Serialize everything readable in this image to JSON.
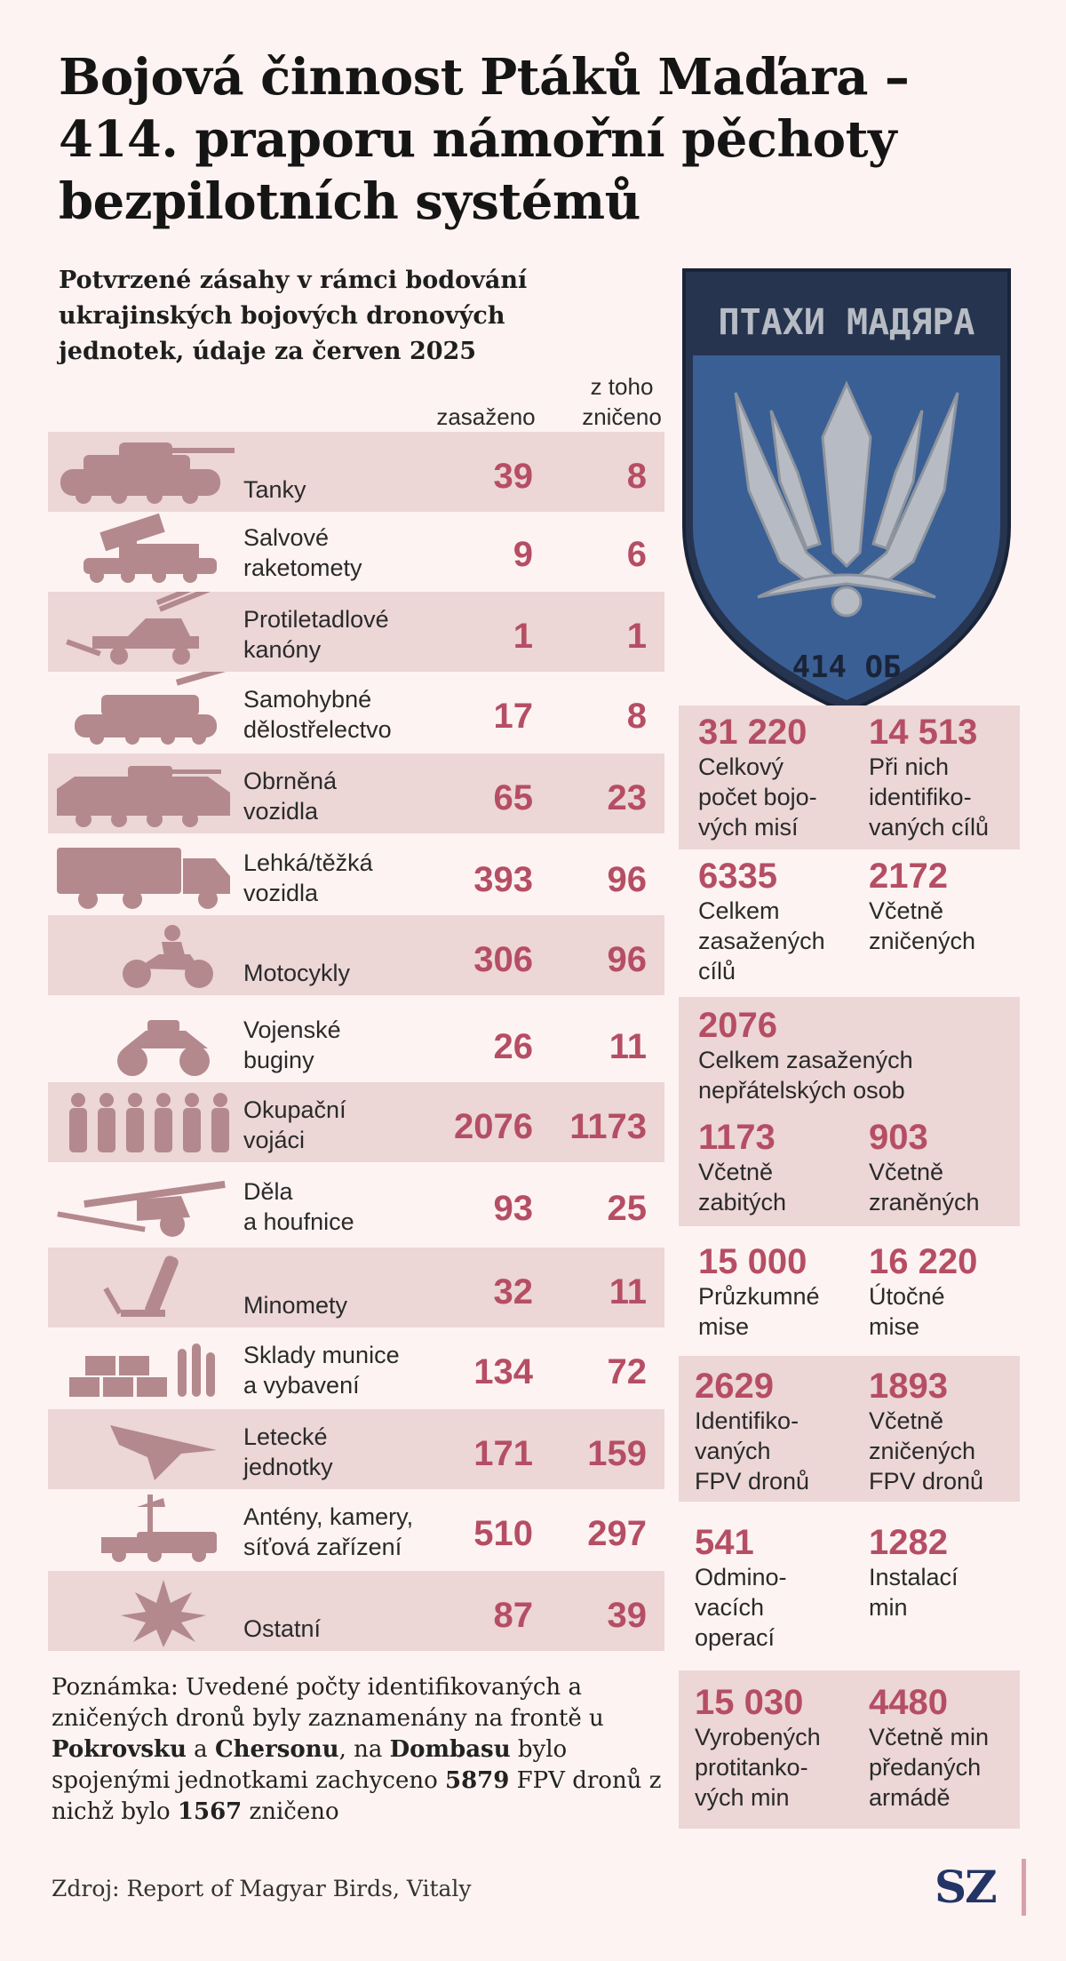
{
  "header": {
    "title": "Bojová činnost Ptáků Maďara – 414. praporu námořní pěchoty bezpilotních systémů",
    "subtitle": "Potvrzené zásahy v rámci bodování ukrajinských bojových dronových jednotek, údaje za červen 2025"
  },
  "columns": {
    "hit": "zasaženo",
    "destroyed": "z toho zničeno"
  },
  "badge": {
    "top_text": "ПТАХИ МАДЯРА",
    "bottom_text": "414 ОБ"
  },
  "colors": {
    "accent": "#b54e64",
    "silhouette": "#b3898d",
    "row_shade": "#ecd6d6",
    "badge_blue": "#3a5f95",
    "badge_dark": "#25344f"
  },
  "chart_data": {
    "type": "table",
    "title": "Bojová činnost Ptáků Maďara – 414. praporu námořní pěchoty bezpilotních systémů",
    "subtitle": "Potvrzené zásahy v rámci bodování ukrajinských bojových dronových jednotek, údaje za červen 2025",
    "columns": [
      "zasaženo",
      "z toho zničeno"
    ],
    "rows": [
      {
        "label": "Tanky",
        "icon": "tank-icon",
        "hit": 39,
        "destroyed": 8
      },
      {
        "label": "Salvové raketomety",
        "icon": "rocket-launcher-icon",
        "hit": 9,
        "destroyed": 6
      },
      {
        "label": "Protiletadlové kanóny",
        "icon": "anti-aircraft-gun-icon",
        "hit": 1,
        "destroyed": 1
      },
      {
        "label": "Samohybné dělostřelectvo",
        "icon": "self-propelled-artillery-icon",
        "hit": 17,
        "destroyed": 8
      },
      {
        "label": "Obrněná vozidla",
        "icon": "armored-vehicle-icon",
        "hit": 65,
        "destroyed": 23
      },
      {
        "label": "Lehká/těžká vozidla",
        "icon": "truck-icon",
        "hit": 393,
        "destroyed": 96
      },
      {
        "label": "Motocykly",
        "icon": "motorcycle-icon",
        "hit": 306,
        "destroyed": 96
      },
      {
        "label": "Vojenské buginy",
        "icon": "buggy-icon",
        "hit": 26,
        "destroyed": 11
      },
      {
        "label": "Okupační vojáci",
        "icon": "soldiers-icon",
        "hit": 2076,
        "destroyed": 1173
      },
      {
        "label": "Děla a houfnice",
        "icon": "howitzer-icon",
        "hit": 93,
        "destroyed": 25
      },
      {
        "label": "Minomety",
        "icon": "mortar-icon",
        "hit": 32,
        "destroyed": 11
      },
      {
        "label": "Sklady munice a vybavení",
        "icon": "ammo-depot-icon",
        "hit": 134,
        "destroyed": 72
      },
      {
        "label": "Letecké jednotky",
        "icon": "drone-icon",
        "hit": 171,
        "destroyed": 159
      },
      {
        "label": "Antény, kamery, síťová zařízení",
        "icon": "antenna-icon",
        "hit": 510,
        "destroyed": 297
      },
      {
        "label": "Ostatní",
        "icon": "explosion-icon",
        "hit": 87,
        "destroyed": 39
      }
    ],
    "row_text": [
      {
        "hit": "39",
        "destroyed": "8",
        "l1": "Tanky",
        "l2": ""
      },
      {
        "hit": "9",
        "destroyed": "6",
        "l1": "Salvové",
        "l2": "raketomety"
      },
      {
        "hit": "1",
        "destroyed": "1",
        "l1": "Protiletadlové",
        "l2": "kanóny"
      },
      {
        "hit": "17",
        "destroyed": "8",
        "l1": "Samohybné",
        "l2": "dělostřelectvo"
      },
      {
        "hit": "65",
        "destroyed": "23",
        "l1": "Obrněná",
        "l2": "vozidla"
      },
      {
        "hit": "393",
        "destroyed": "96",
        "l1": "Lehká/těžká",
        "l2": "vozidla"
      },
      {
        "hit": "306",
        "destroyed": "96",
        "l1": "Motocykly",
        "l2": ""
      },
      {
        "hit": "26",
        "destroyed": "11",
        "l1": "Vojenské",
        "l2": "buginy"
      },
      {
        "hit": "2076",
        "destroyed": "1173",
        "l1": "Okupační",
        "l2": "vojáci"
      },
      {
        "hit": "93",
        "destroyed": "25",
        "l1": "Děla",
        "l2": "a houfnice"
      },
      {
        "hit": "32",
        "destroyed": "11",
        "l1": "Minomety",
        "l2": ""
      },
      {
        "hit": "134",
        "destroyed": "72",
        "l1": "Sklady munice",
        "l2": "a vybavení"
      },
      {
        "hit": "171",
        "destroyed": "159",
        "l1": "Letecké",
        "l2": "jednotky"
      },
      {
        "hit": "510",
        "destroyed": "297",
        "l1": "Antény, kamery,",
        "l2": "síťová zařízení"
      },
      {
        "hit": "87",
        "destroyed": "39",
        "l1": "Ostatní",
        "l2": ""
      }
    ]
  },
  "stats": {
    "missions_total": {
      "value": "31 220",
      "label": "Celkový počet bojových misí",
      "l1": "Celkový",
      "l2": "počet bojo-",
      "l3": "vých misí"
    },
    "targets_identified": {
      "value": "14 513",
      "label": "Při nich identifikovaných cílů",
      "l1": "Při nich",
      "l2": "identifiko-",
      "l3": "vaných cílů"
    },
    "targets_hit": {
      "value": "6335",
      "label": "Celkem zasažených cílů",
      "l1": "Celkem",
      "l2": "zasažených",
      "l3": "cílů"
    },
    "targets_destroyed": {
      "value": "2172",
      "label": "Včetně zničených",
      "l1": "Včetně",
      "l2": "zničených"
    },
    "persons_hit": {
      "value": "2076",
      "label": "Celkem zasažených nepřátelských osob",
      "l1": "Celkem zasažených",
      "l2": "nepřátelských osob"
    },
    "killed": {
      "value": "1173",
      "label": "Včetně zabitých",
      "l1": "Včetně",
      "l2": "zabitých"
    },
    "wounded": {
      "value": "903",
      "label": "Včetně zraněných",
      "l1": "Včetně",
      "l2": "zraněných"
    },
    "recon_missions": {
      "value": "15 000",
      "label": "Průzkumné mise",
      "l1": "Průzkumné",
      "l2": "mise"
    },
    "strike_missions": {
      "value": "16 220",
      "label": "Útočné mise",
      "l1": "Útočné",
      "l2": "mise"
    },
    "fpv_identified": {
      "value": "2629",
      "label": "Identifikovaných FPV dronů",
      "l1": "Identifiko-",
      "l2": "vaných",
      "l3": "FPV dronů"
    },
    "fpv_destroyed": {
      "value": "1893",
      "label": "Včetně zničených FPV dronů",
      "l1": "Včetně",
      "l2": "zničených",
      "l3": "FPV dronů"
    },
    "demining_ops": {
      "value": "541",
      "label": "Odminovacích operací",
      "l1": "Odmino-",
      "l2": "vacích",
      "l3": "operací"
    },
    "mine_installs": {
      "value": "1282",
      "label": "Instalací min",
      "l1": "Instalací",
      "l2": "min"
    },
    "mines_produced": {
      "value": "15 030",
      "label": "Vyrobených protitankových min",
      "l1": "Vyrobených",
      "l2": "protitanko-",
      "l3": "vých min"
    },
    "mines_handed": {
      "value": "4480",
      "label": "Včetně min předaných armádě",
      "l1": "Včetně min",
      "l2": "předaných",
      "l3": "armádě"
    }
  },
  "note": {
    "p1": "Poznámka: Uvedené počty identifikovaných a zničených dronů byly zaznamenány na frontě u ",
    "b1": "Pokrovsku",
    "p2": " a ",
    "b2": "Chersonu",
    "p3": ", na ",
    "b3": "Dombasu",
    "p4": " bylo spojenými jednotkami zachyceno ",
    "b4": "5879",
    "p5": " FPV dronů z nichž bylo ",
    "b5": "1567",
    "p6": " zničeno"
  },
  "source": "Zdroj: Report of Magyar Birds, Vitaly",
  "logo": "SZ"
}
